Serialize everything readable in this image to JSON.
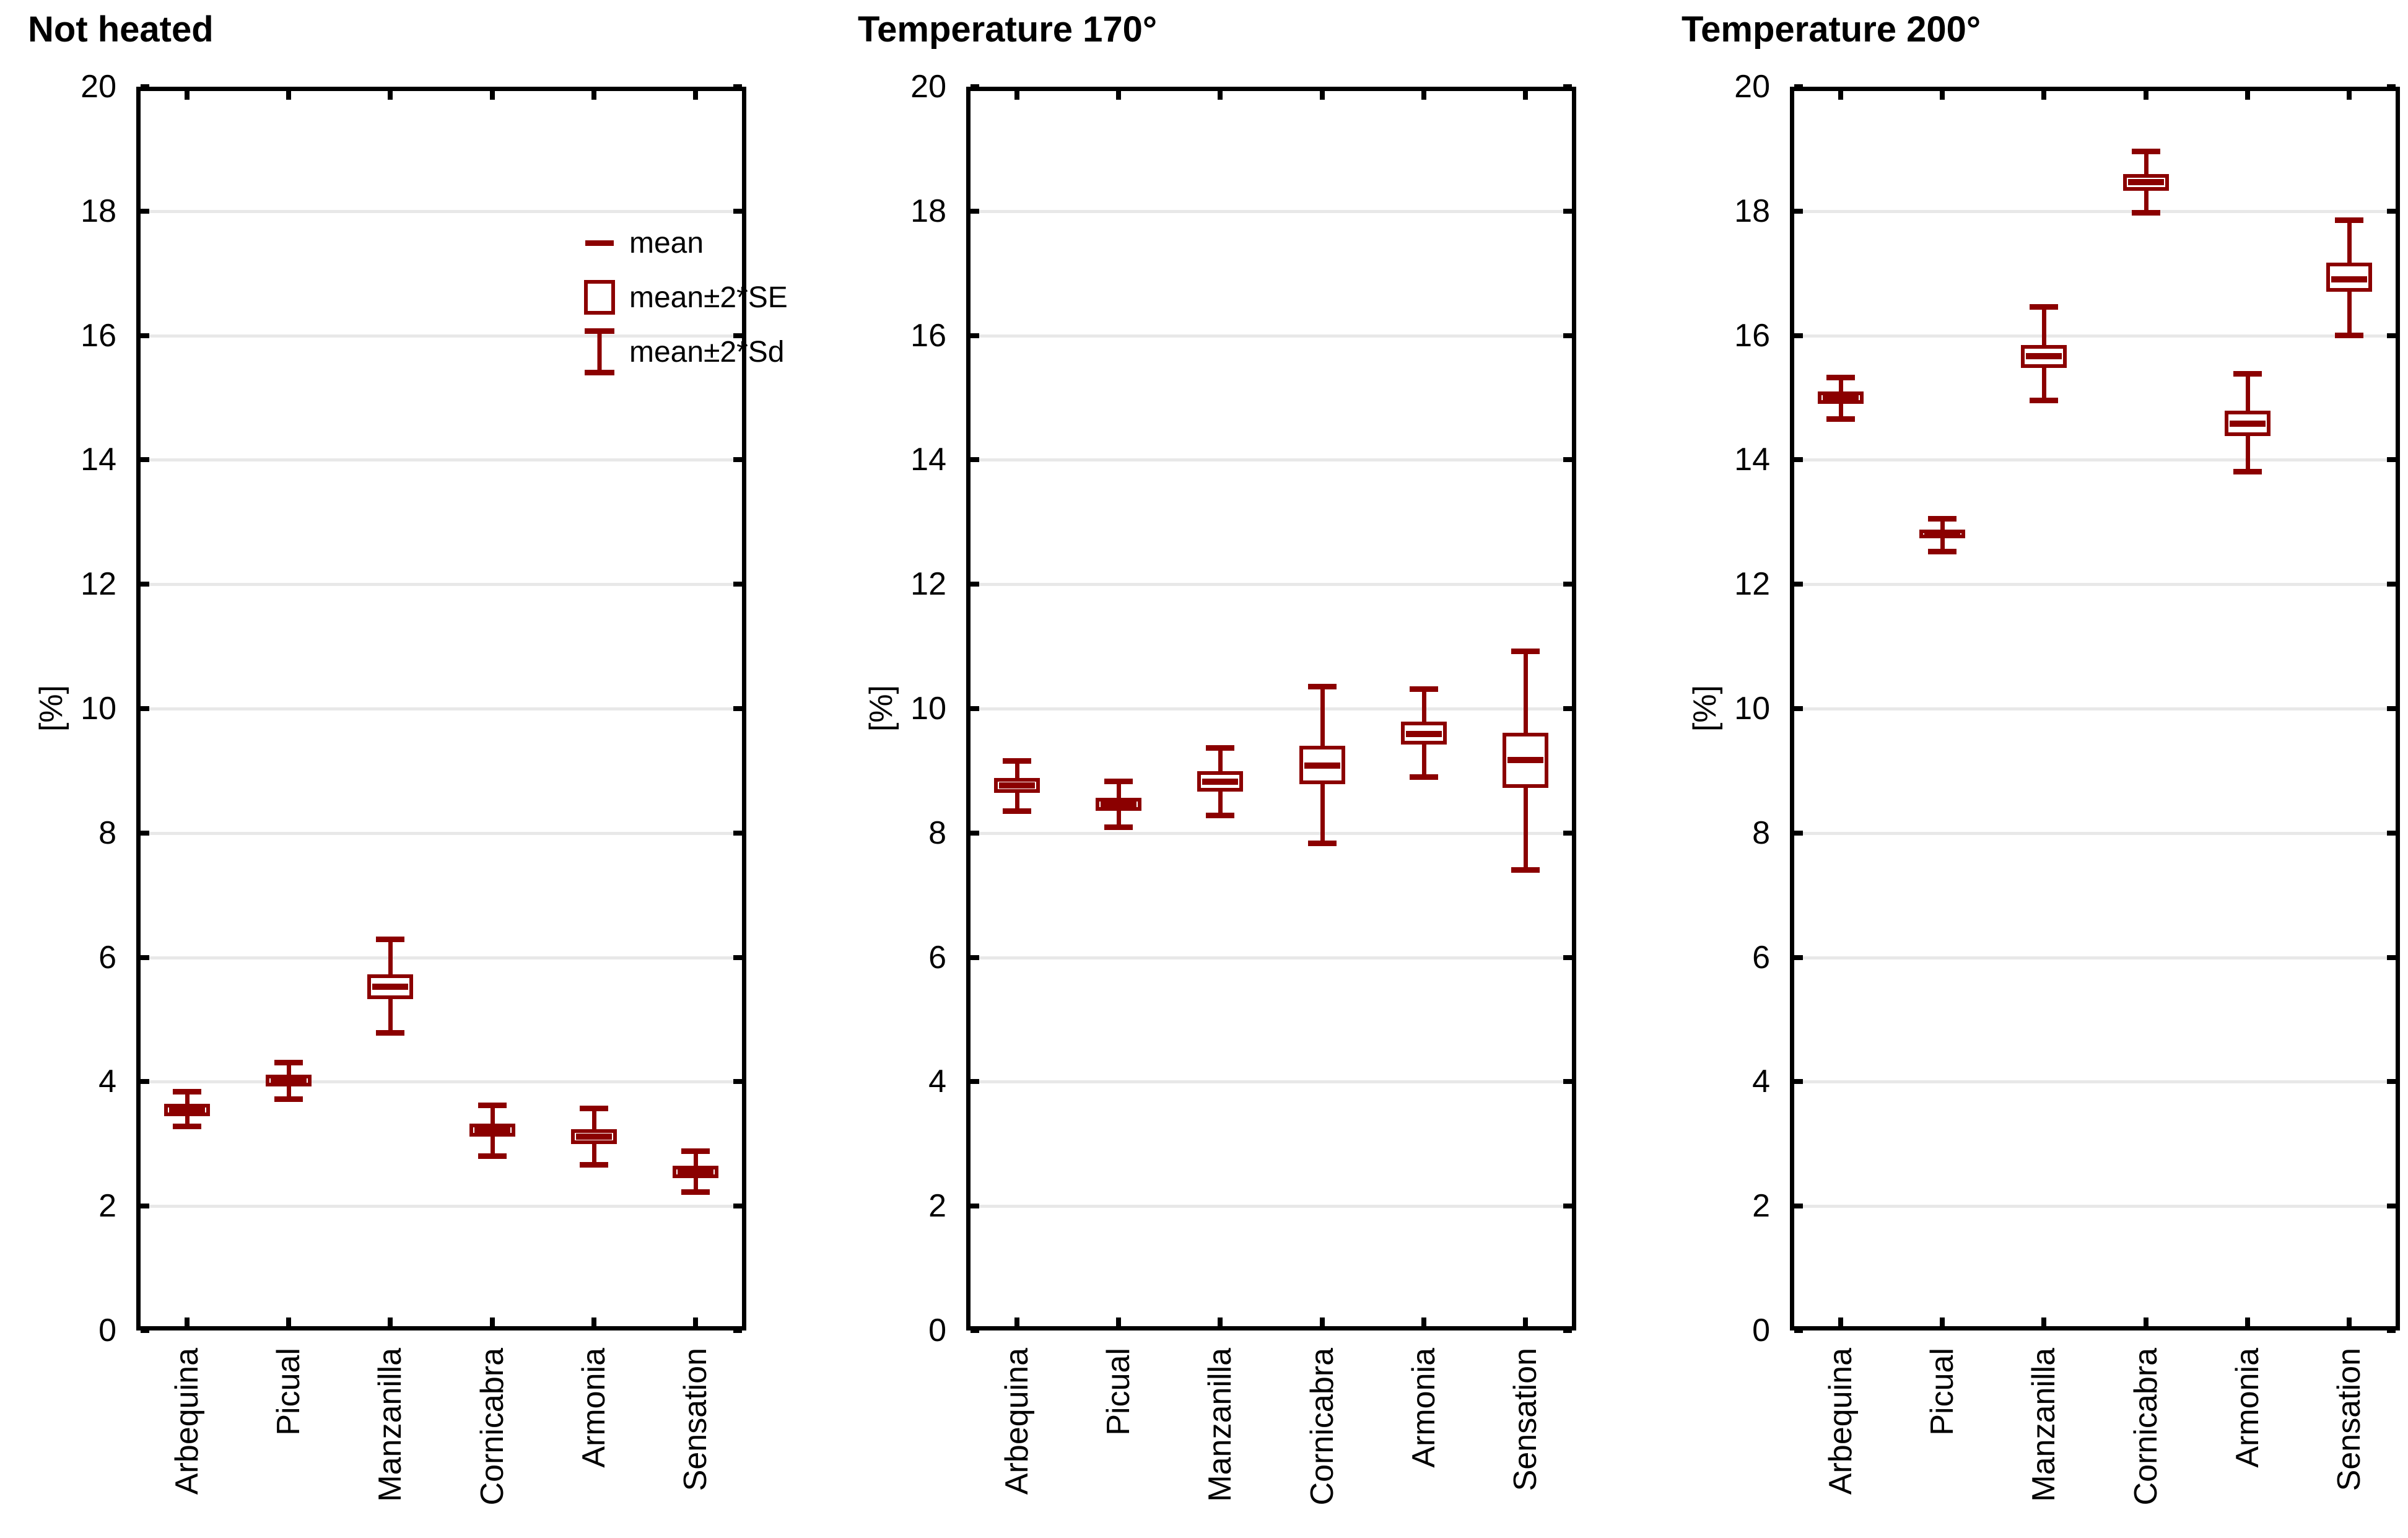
{
  "chart_data": {
    "type": "box",
    "ylabel": "[%]",
    "ylim": [
      0,
      20
    ],
    "ytick_step": 2,
    "grid": true,
    "grid_lines_at": [
      2,
      4,
      6,
      8,
      10,
      12,
      14,
      16,
      18
    ],
    "legend_position": "inside-top-right-of-first-panel",
    "categories": [
      "Arbequina",
      "Picual",
      "Manzanilla",
      "Cornicabra",
      "Armonia",
      "Sensation"
    ],
    "colors": {
      "series": "#8b0000",
      "grid": "#e8e8e8",
      "axis": "#000000",
      "background": "#ffffff"
    },
    "legend": [
      {
        "label": "mean",
        "symbol": "mean-dash"
      },
      {
        "label": "mean±2*SE",
        "symbol": "se-box"
      },
      {
        "label": "mean±2*Sd",
        "symbol": "sd-whisker"
      }
    ],
    "panels": [
      {
        "title": "Not heated",
        "boxes": [
          {
            "category": "Arbequina",
            "mean": 3.55,
            "se_low": 3.45,
            "se_high": 3.65,
            "sd_low": 3.28,
            "sd_high": 3.84
          },
          {
            "category": "Picual",
            "mean": 4.01,
            "se_low": 3.92,
            "se_high": 4.11,
            "sd_low": 3.72,
            "sd_high": 4.31
          },
          {
            "category": "Manzanilla",
            "mean": 5.53,
            "se_low": 5.33,
            "se_high": 5.73,
            "sd_low": 4.78,
            "sd_high": 6.29
          },
          {
            "category": "Cornicabra",
            "mean": 3.22,
            "se_low": 3.12,
            "se_high": 3.33,
            "sd_low": 2.8,
            "sd_high": 3.63
          },
          {
            "category": "Armonia",
            "mean": 3.12,
            "se_low": 3.0,
            "se_high": 3.24,
            "sd_low": 2.66,
            "sd_high": 3.58
          },
          {
            "category": "Sensation",
            "mean": 2.55,
            "se_low": 2.45,
            "se_high": 2.65,
            "sd_low": 2.22,
            "sd_high": 2.89
          }
        ]
      },
      {
        "title": "Temperature 170°",
        "boxes": [
          {
            "category": "Arbequina",
            "mean": 8.76,
            "se_low": 8.65,
            "se_high": 8.88,
            "sd_low": 8.35,
            "sd_high": 9.16
          },
          {
            "category": "Picual",
            "mean": 8.46,
            "se_low": 8.36,
            "se_high": 8.57,
            "sd_low": 8.09,
            "sd_high": 8.83
          },
          {
            "category": "Manzanilla",
            "mean": 8.82,
            "se_low": 8.67,
            "se_high": 8.99,
            "sd_low": 8.28,
            "sd_high": 9.37
          },
          {
            "category": "Cornicabra",
            "mean": 9.08,
            "se_low": 8.78,
            "se_high": 9.4,
            "sd_low": 7.83,
            "sd_high": 10.36
          },
          {
            "category": "Armonia",
            "mean": 9.59,
            "se_low": 9.42,
            "se_high": 9.79,
            "sd_low": 8.89,
            "sd_high": 10.32
          },
          {
            "category": "Sensation",
            "mean": 9.17,
            "se_low": 8.72,
            "se_high": 9.61,
            "sd_low": 7.4,
            "sd_high": 10.93
          }
        ]
      },
      {
        "title": "Temperature 200°",
        "boxes": [
          {
            "category": "Arbequina",
            "mean": 14.99,
            "se_low": 14.9,
            "se_high": 15.1,
            "sd_low": 14.65,
            "sd_high": 15.33
          },
          {
            "category": "Picual",
            "mean": 12.8,
            "se_low": 12.74,
            "se_high": 12.88,
            "sd_low": 12.52,
            "sd_high": 13.06
          },
          {
            "category": "Manzanilla",
            "mean": 15.67,
            "se_low": 15.48,
            "se_high": 15.85,
            "sd_low": 14.95,
            "sd_high": 16.46
          },
          {
            "category": "Cornicabra",
            "mean": 18.47,
            "se_low": 18.33,
            "se_high": 18.6,
            "sd_low": 17.97,
            "sd_high": 18.96
          },
          {
            "category": "Armonia",
            "mean": 14.58,
            "se_low": 14.38,
            "se_high": 14.79,
            "sd_low": 13.8,
            "sd_high": 15.39
          },
          {
            "category": "Sensation",
            "mean": 16.9,
            "se_low": 16.7,
            "se_high": 17.17,
            "sd_low": 16.0,
            "sd_high": 17.86
          }
        ]
      }
    ]
  }
}
